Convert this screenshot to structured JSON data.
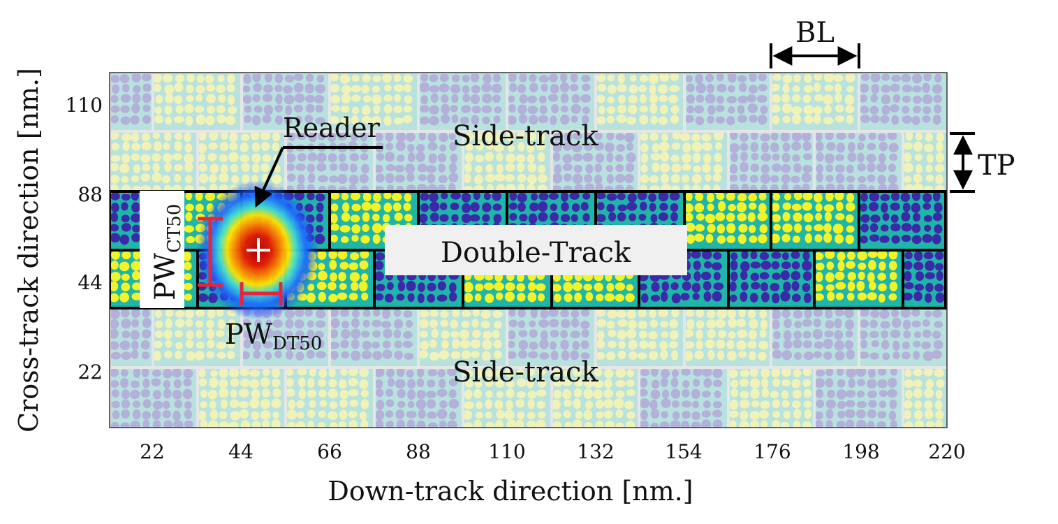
{
  "figure": {
    "x_axis": {
      "label": "Down-track direction [nm.]",
      "ticks": [
        "22",
        "44",
        "66",
        "88",
        "110",
        "132",
        "154",
        "176",
        "198",
        "220"
      ]
    },
    "y_axis": {
      "label": "Cross-track direction [nm.]",
      "ticks": [
        "110",
        "88",
        "44",
        "22"
      ]
    },
    "annotations": {
      "bit_length": "BL",
      "track_pitch": "TP",
      "reader": "Reader",
      "side_track_top": "Side-track",
      "side_track_bottom": "Side-track",
      "double_track": "Double-Track",
      "pw_ct50_main": "PW",
      "pw_ct50_sub": "CT50",
      "pw_dt50_main": "PW",
      "pw_dt50_sub": "DT50"
    },
    "colors": {
      "main_track_blue": "#3a2aa8",
      "main_track_yellow": "#f3f32a",
      "main_track_boundary": "#1fb5a8",
      "side_track_purple": "#b3b0da",
      "side_track_yellow": "#f1f2b8",
      "side_track_boundary": "#b8e2dd",
      "marker_red": "#e8243c"
    }
  }
}
